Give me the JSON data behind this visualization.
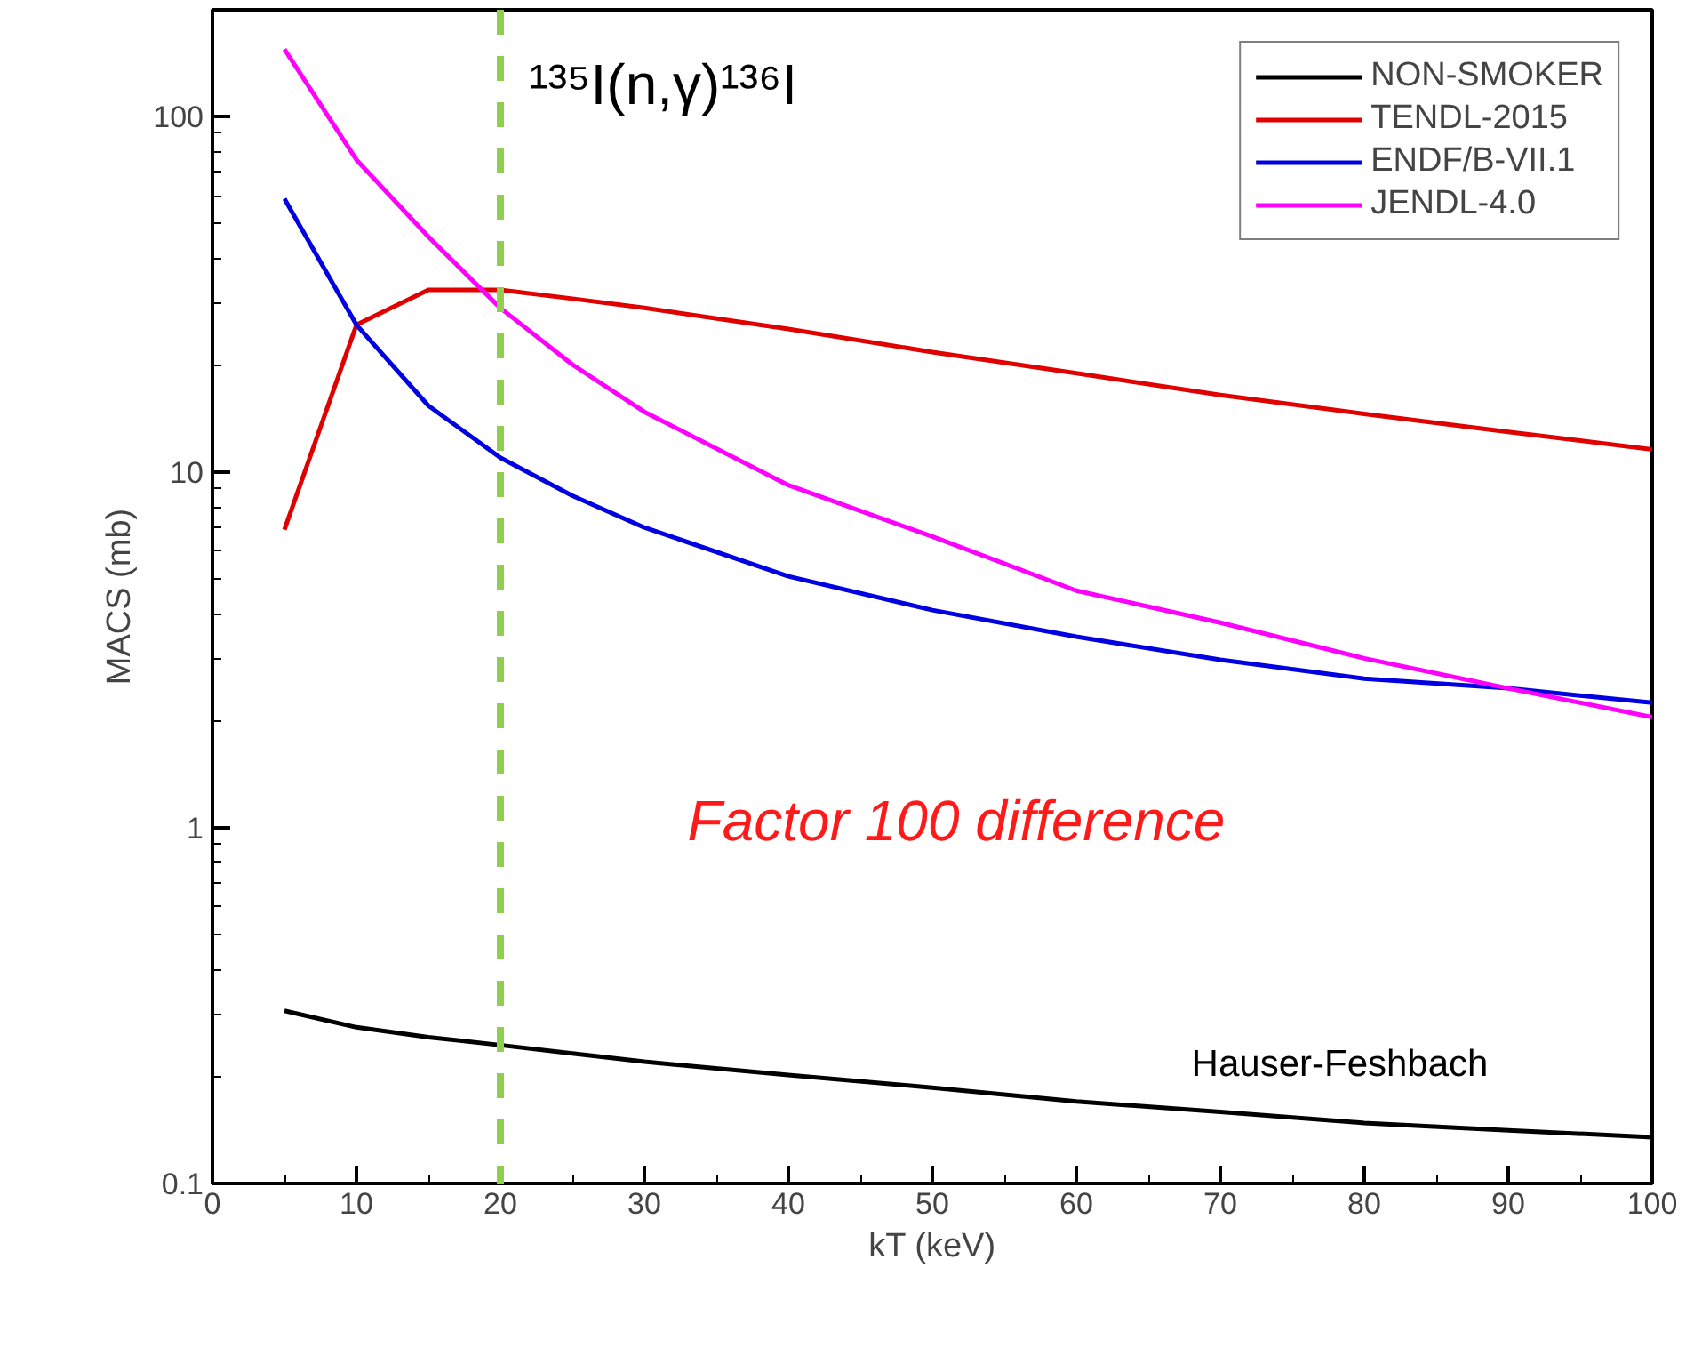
{
  "chart_data": {
    "type": "line",
    "xlabel": "kT (keV)",
    "ylabel": "MACS (mb)",
    "x": [
      5,
      10,
      15,
      20,
      25,
      30,
      40,
      50,
      60,
      70,
      80,
      90,
      100
    ],
    "series": [
      {
        "name": "NON-SMOKER",
        "color": "#000000",
        "values": [
          0.306,
          0.275,
          0.258,
          0.245,
          0.232,
          0.22,
          0.202,
          0.186,
          0.17,
          0.159,
          0.148,
          0.141,
          0.135
        ]
      },
      {
        "name": "TENDL-2015",
        "color": "#e00000",
        "values": [
          6.9,
          26,
          32.6,
          32.6,
          30.8,
          29,
          25.3,
          21.8,
          19,
          16.5,
          14.6,
          13,
          11.6
        ]
      },
      {
        "name": "ENDF/B-VII.1",
        "color": "#0000e0",
        "values": [
          58.8,
          26,
          15.4,
          11,
          8.6,
          7.0,
          5.1,
          4.1,
          3.45,
          2.97,
          2.63,
          2.47,
          2.25
        ]
      },
      {
        "name": "JENDL-4.0",
        "color": "#ff00ff",
        "values": [
          155,
          75.7,
          46,
          29,
          20.1,
          14.8,
          9.2,
          6.6,
          4.65,
          3.78,
          3.0,
          2.47,
          2.05
        ]
      }
    ],
    "log": "y",
    "xlim": [
      0,
      100
    ],
    "ylim": [
      0.1,
      200
    ],
    "xticks": [
      0,
      10,
      20,
      30,
      40,
      50,
      60,
      70,
      80,
      90,
      100
    ],
    "yticks": [
      0.1,
      1,
      10,
      100
    ],
    "grid": false,
    "legend": "top right",
    "marker": "none",
    "line_style": "solid",
    "ref_lines": [
      {
        "axis": "x",
        "value": 20,
        "label": null,
        "color": "#8fcf4f",
        "line_style": "dashed"
      }
    ],
    "annotations": [
      "¹³⁵I(n,γ)¹³⁶I",
      "Factor 100 difference",
      "Hauser-Feshbach"
    ]
  }
}
